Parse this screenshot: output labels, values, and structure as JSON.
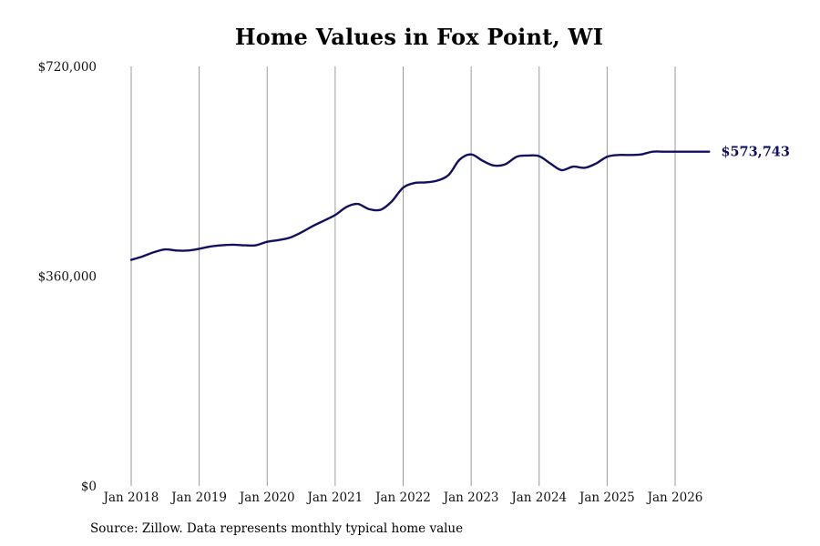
{
  "chart_data": {
    "type": "line",
    "title": "Home Values in Fox Point, WI",
    "source": "Source: Zillow. Data represents monthly typical home value",
    "xlabel": "",
    "ylabel": "",
    "ylim": [
      0,
      720000
    ],
    "y_ticks": [
      {
        "value": 0,
        "label": "$0"
      },
      {
        "value": 360000,
        "label": "$360,000"
      },
      {
        "value": 720000,
        "label": "$720,000"
      }
    ],
    "x_ticks": [
      {
        "value": 2018,
        "label": "Jan 2018"
      },
      {
        "value": 2019,
        "label": "Jan 2019"
      },
      {
        "value": 2020,
        "label": "Jan 2020"
      },
      {
        "value": 2021,
        "label": "Jan 2021"
      },
      {
        "value": 2022,
        "label": "Jan 2022"
      },
      {
        "value": 2023,
        "label": "Jan 2023"
      },
      {
        "value": 2024,
        "label": "Jan 2024"
      },
      {
        "value": 2025,
        "label": "Jan 2025"
      },
      {
        "value": 2026,
        "label": "Jan 2026"
      }
    ],
    "vertical_grid": true,
    "horizontal_grid": false,
    "line_color": "#10105e",
    "gridline_color": "#9a9a9a",
    "end_label": "$573,743",
    "series": [
      {
        "x": [
          2018.0,
          2018.17,
          2018.33,
          2018.5,
          2018.67,
          2018.83,
          2019.0,
          2019.17,
          2019.33,
          2019.5,
          2019.67,
          2019.83,
          2020.0,
          2020.17,
          2020.33,
          2020.5,
          2020.67,
          2020.83,
          2021.0,
          2021.17,
          2021.33,
          2021.5,
          2021.67,
          2021.83,
          2022.0,
          2022.17,
          2022.33,
          2022.5,
          2022.67,
          2022.83,
          2023.0,
          2023.17,
          2023.33,
          2023.5,
          2023.67,
          2023.83,
          2024.0,
          2024.17,
          2024.33,
          2024.5,
          2024.67,
          2024.83,
          2025.0,
          2025.17,
          2025.33,
          2025.5,
          2025.67,
          2025.83,
          2026.0,
          2026.17,
          2026.33,
          2026.5
        ],
        "y": [
          388000,
          394000,
          401000,
          406000,
          404000,
          404000,
          407000,
          411000,
          413000,
          414000,
          413000,
          413000,
          419000,
          422000,
          426000,
          435000,
          446000,
          455000,
          465000,
          479000,
          484000,
          475000,
          474000,
          488000,
          512000,
          520000,
          521000,
          524000,
          534000,
          560000,
          569000,
          558000,
          550000,
          552000,
          565000,
          567000,
          566000,
          553000,
          542000,
          548000,
          546000,
          553000,
          565000,
          568000,
          568000,
          569000,
          573743,
          573743,
          573743,
          573743,
          573743,
          573743
        ]
      }
    ]
  }
}
